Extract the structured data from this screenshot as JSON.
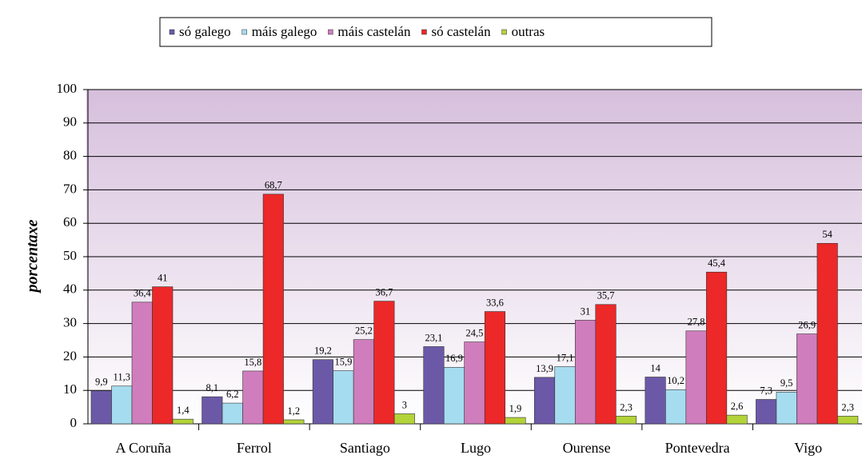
{
  "chart_data": {
    "type": "bar",
    "y_label": "porcentaxe",
    "categories": [
      "A Coruña",
      "Ferrol",
      "Santiago",
      "Lugo",
      "Ourense",
      "Pontevedra",
      "Vigo"
    ],
    "series": [
      {
        "name": "só galego",
        "color": "#6b59a8",
        "values": [
          9.9,
          8.1,
          19.2,
          23.1,
          13.9,
          14,
          7.3
        ],
        "value_labels": [
          "9,9",
          "8,1",
          "19,2",
          "23,1",
          "13,9",
          "14",
          "7,3"
        ]
      },
      {
        "name": "máis galego",
        "color": "#a6dcef",
        "values": [
          11.3,
          6.2,
          15.9,
          16.9,
          17.1,
          10.2,
          9.5
        ],
        "value_labels": [
          "11,3",
          "6,2",
          "15,9",
          "16,9",
          "17,1",
          "10,2",
          "9,5"
        ]
      },
      {
        "name": "máis castelán",
        "color": "#d07dbd",
        "values": [
          36.4,
          15.8,
          25.2,
          24.5,
          31,
          27.8,
          26.9
        ],
        "value_labels": [
          "36,4",
          "15,8",
          "25,2",
          "24,5",
          "31",
          "27,8",
          "26,9"
        ]
      },
      {
        "name": "só castelán",
        "color": "#ec2828",
        "values": [
          41,
          68.7,
          36.7,
          33.6,
          35.7,
          45.4,
          54
        ],
        "value_labels": [
          "41",
          "68,7",
          "36,7",
          "33,6",
          "35,7",
          "45,4",
          "54"
        ]
      },
      {
        "name": "outras",
        "color": "#b3d33a",
        "values": [
          1.4,
          1.2,
          3,
          1.9,
          2.3,
          2.6,
          2.3
        ],
        "value_labels": [
          "1,4",
          "1,2",
          "3",
          "1,9",
          "2,3",
          "2,6",
          "2,3"
        ]
      }
    ],
    "ylim": [
      0,
      100
    ],
    "yticks": [
      0,
      10,
      20,
      30,
      40,
      50,
      60,
      70,
      80,
      90,
      100
    ],
    "grid": true,
    "legend": "top"
  }
}
